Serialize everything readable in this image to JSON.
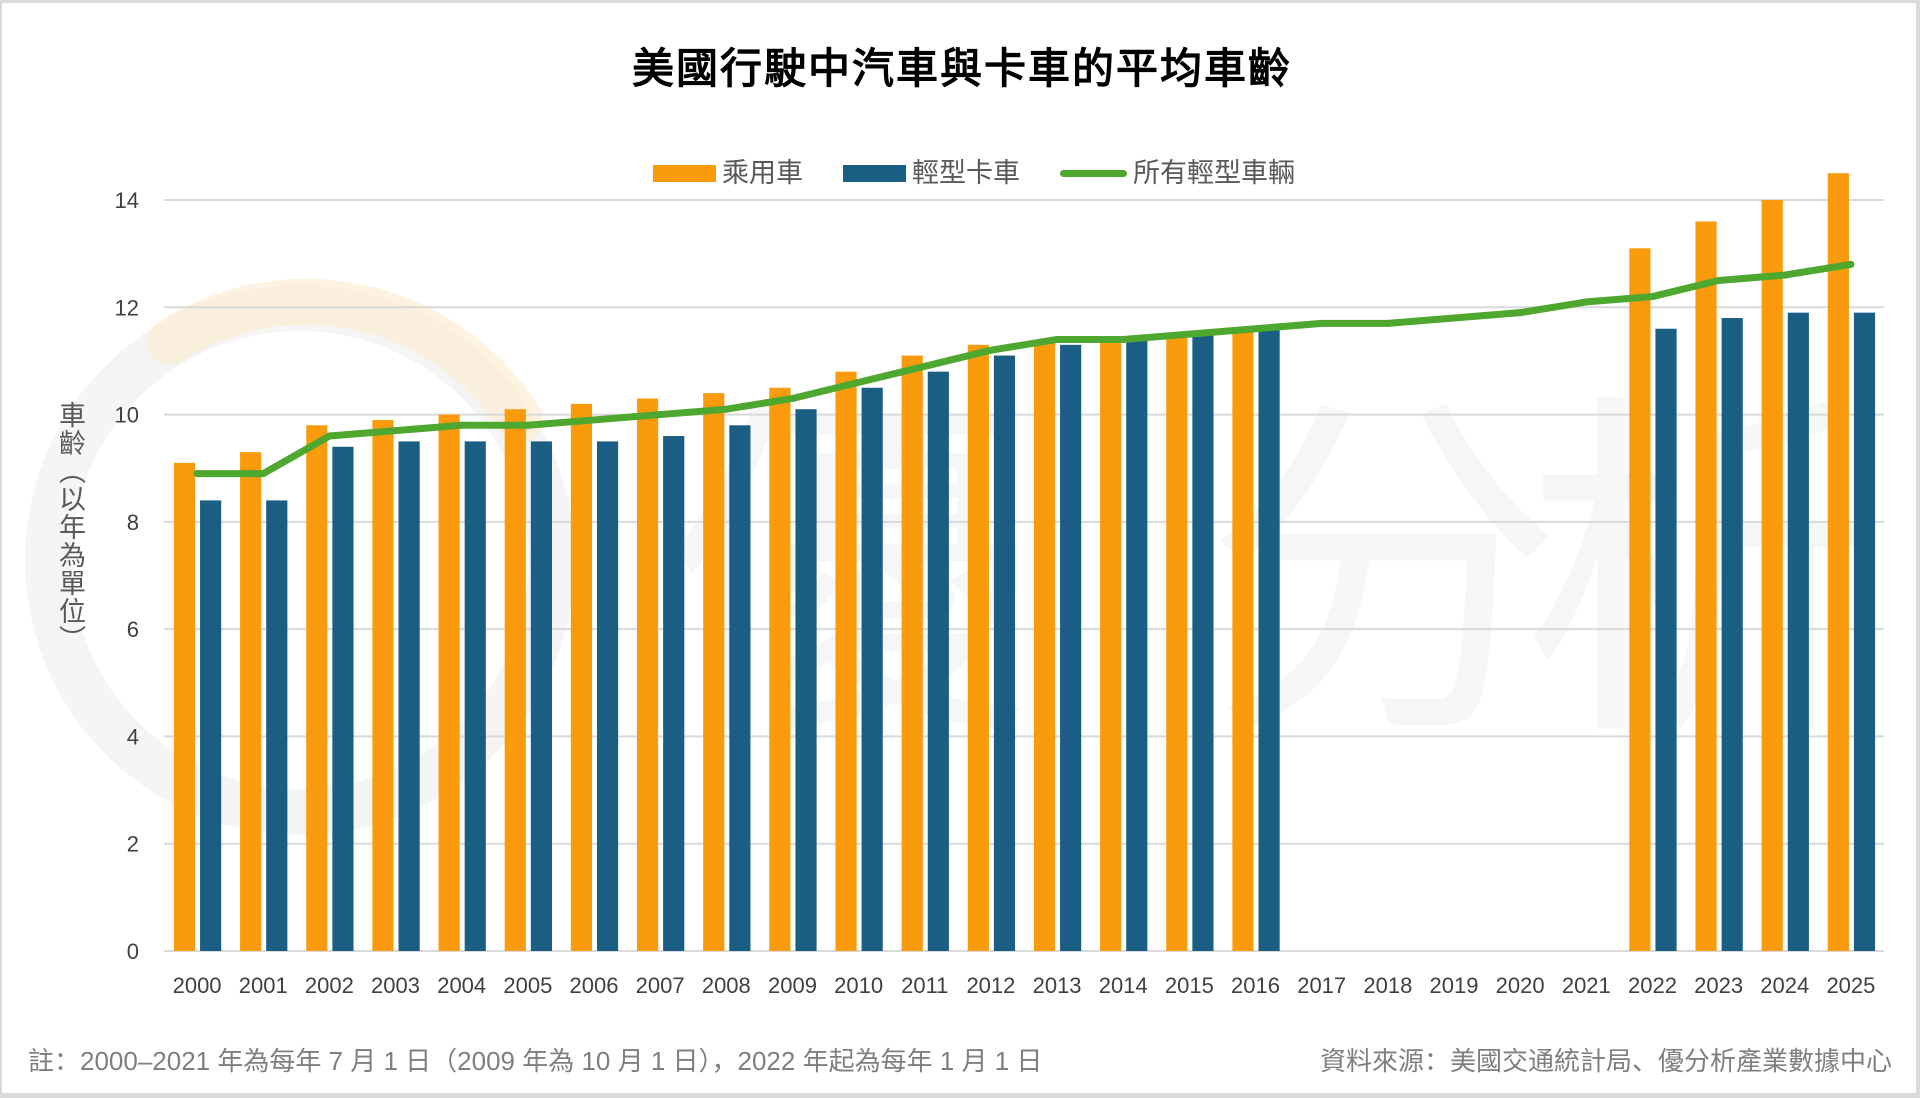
{
  "chart_data": {
    "type": "bar",
    "title": "美國行駛中汽車與卡車的平均車齡",
    "xlabel": "",
    "ylabel": "車齡（以年為單位）",
    "ylim": [
      0,
      14
    ],
    "y_ticks": [
      0,
      2,
      4,
      6,
      8,
      10,
      12,
      14
    ],
    "grid": true,
    "legend_position": "top",
    "categories": [
      "2000",
      "2001",
      "2002",
      "2003",
      "2004",
      "2005",
      "2006",
      "2007",
      "2008",
      "2009",
      "2010",
      "2011",
      "2012",
      "2013",
      "2014",
      "2015",
      "2016",
      "2017",
      "2018",
      "2019",
      "2020",
      "2021",
      "2022",
      "2023",
      "2024",
      "2025"
    ],
    "series": [
      {
        "name": "乘用車",
        "type": "bar",
        "color": "#F99B0C",
        "values": [
          9.1,
          9.3,
          9.8,
          9.9,
          10.0,
          10.1,
          10.2,
          10.3,
          10.4,
          10.5,
          10.8,
          11.1,
          11.3,
          11.4,
          11.4,
          11.5,
          11.6,
          null,
          null,
          null,
          null,
          null,
          13.1,
          13.6,
          14.0,
          14.5
        ]
      },
      {
        "name": "輕型卡車",
        "type": "bar",
        "color": "#1B5E83",
        "values": [
          8.4,
          8.4,
          9.4,
          9.5,
          9.5,
          9.5,
          9.5,
          9.6,
          9.8,
          10.1,
          10.5,
          10.8,
          11.1,
          11.3,
          11.4,
          11.5,
          11.6,
          null,
          null,
          null,
          null,
          null,
          11.6,
          11.8,
          11.9,
          11.9
        ]
      },
      {
        "name": "所有輕型車輛",
        "type": "line",
        "color": "#4EA72E",
        "values": [
          8.9,
          8.9,
          9.6,
          9.7,
          9.8,
          9.8,
          9.9,
          10.0,
          10.1,
          10.3,
          10.6,
          10.9,
          11.2,
          11.4,
          11.4,
          11.5,
          11.6,
          11.7,
          11.7,
          11.8,
          11.9,
          12.1,
          12.2,
          12.5,
          12.6,
          12.8
        ]
      }
    ]
  },
  "footnote": {
    "note": "註：2000–2021 年為每年 7 月 1 日（2009 年為 10 月 1 日），2022 年起為每年 1 月 1 日",
    "source": "資料來源：美國交通統計局、優分析產業數據中心"
  },
  "watermark": {
    "text": "優分析",
    "ring_color": "#EDEDED",
    "arc_color": "#FDEBCD"
  }
}
